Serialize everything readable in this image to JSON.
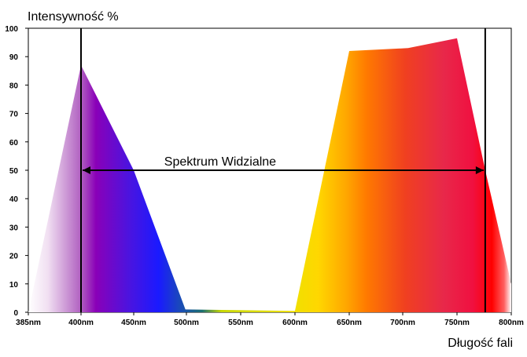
{
  "chart_data": {
    "type": "area",
    "title": "",
    "ylabel": "Intensywność %",
    "xlabel": "Długość fali",
    "ylim": [
      0,
      100
    ],
    "y_ticks": [
      0,
      10,
      20,
      30,
      40,
      50,
      60,
      70,
      80,
      90,
      100
    ],
    "x_ticks": [
      385,
      400,
      450,
      500,
      550,
      600,
      650,
      700,
      750,
      800
    ],
    "x_tick_labels": [
      "385nm",
      "400nm",
      "450nm",
      "500nm",
      "550nm",
      "600nm",
      "650nm",
      "700nm",
      "750nm",
      "800nm"
    ],
    "xlim": [
      385,
      800
    ],
    "series": [
      {
        "points": [
          {
            "x": 385,
            "y": 0
          },
          {
            "x": 400,
            "y": 87
          },
          {
            "x": 450,
            "y": 50
          },
          {
            "x": 499,
            "y": 1
          },
          {
            "x": 600,
            "y": 0.5
          },
          {
            "x": 650,
            "y": 92
          },
          {
            "x": 705,
            "y": 93
          },
          {
            "x": 750,
            "y": 96.5
          },
          {
            "x": 776,
            "y": 50
          },
          {
            "x": 800,
            "y": 10
          }
        ]
      }
    ],
    "annotations": [
      {
        "text": "Spektrum Widzialne",
        "from_x": 400,
        "to_x": 776,
        "y": 50
      }
    ],
    "vertical_lines": [
      400,
      776
    ],
    "colors": {
      "violet": "#8000c0",
      "blue": "#1a1aff",
      "teal": "#1a6e6e",
      "yellow": "#ffd700",
      "orange": "#ff7a00",
      "red": "#ff0000",
      "axis": "#000000"
    }
  }
}
